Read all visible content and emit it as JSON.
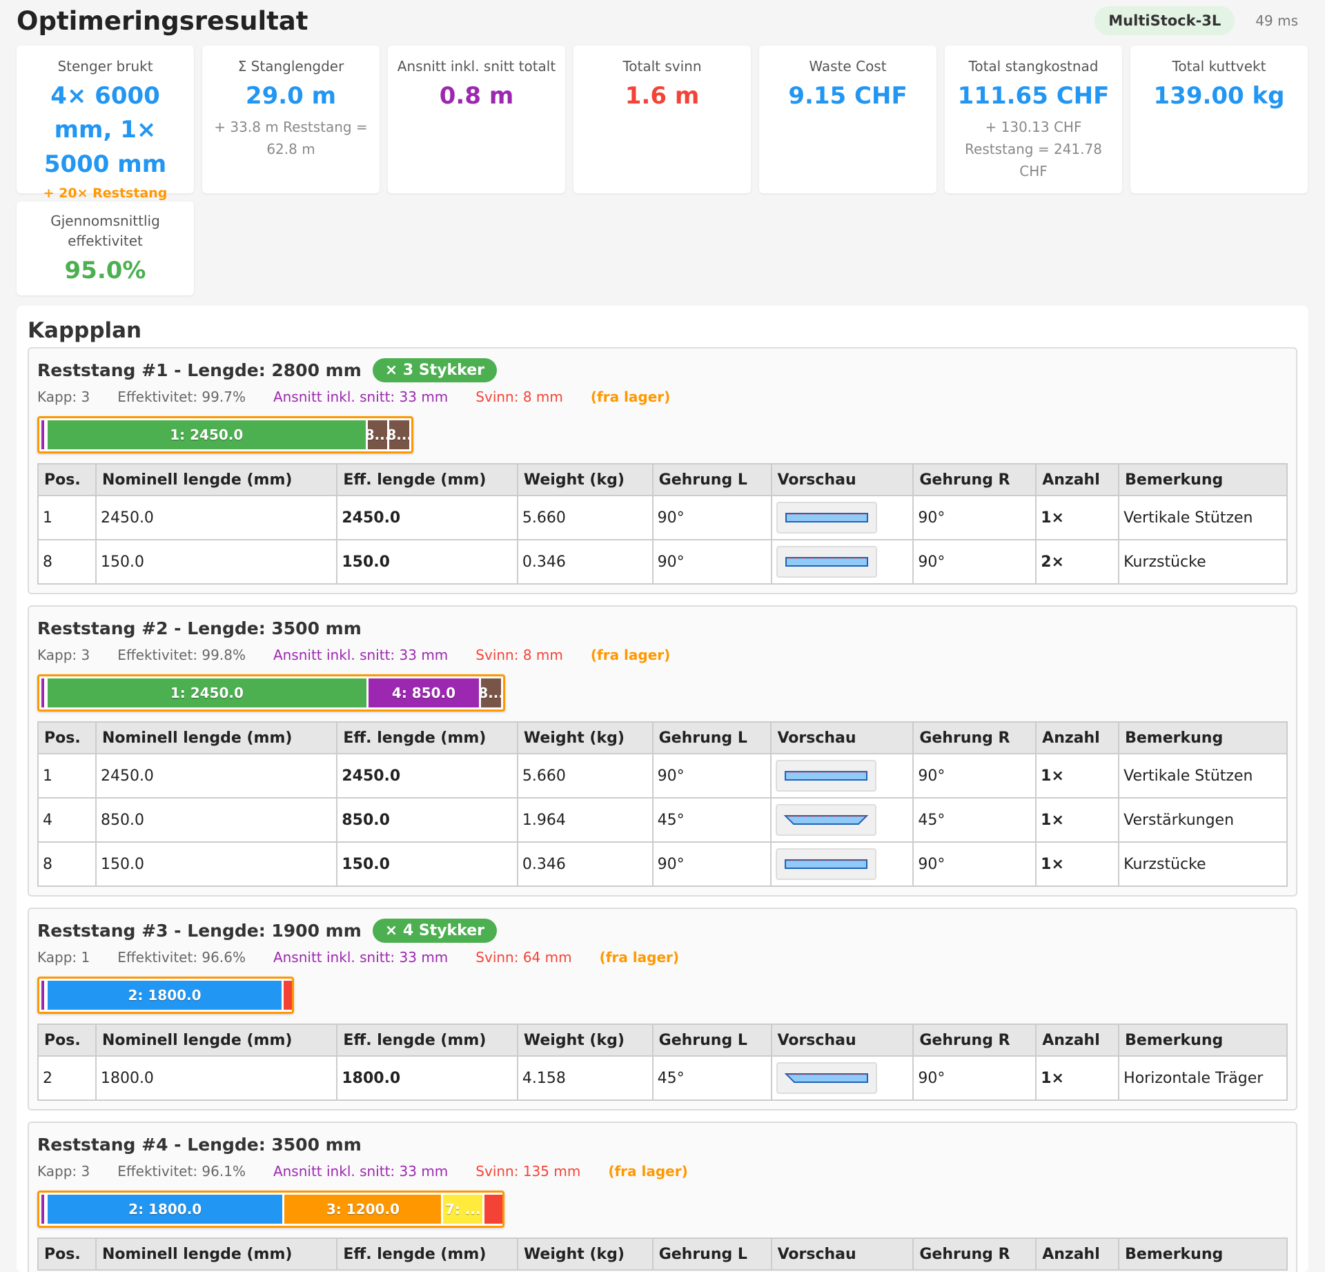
{
  "header": {
    "title": "Optimeringsresultat",
    "algorithm": "MultiStock-3L",
    "time": "49 ms"
  },
  "stats": [
    {
      "label": "Stenger brukt",
      "value": "4× 6000 mm, 1× 5000 mm",
      "accent_line": "+ 20× Reststang",
      "color": "#2196f3"
    },
    {
      "label": "Σ Stanglengder",
      "value": "29.0 m",
      "sub": "+ 33.8 m Reststang = 62.8 m",
      "color": "#2196f3"
    },
    {
      "label": "Ansnitt inkl. snitt totalt",
      "value": "0.8 m",
      "color": "#9c27b0"
    },
    {
      "label": "Totalt svinn",
      "value": "1.6 m",
      "color": "#f44336"
    },
    {
      "label": "Waste Cost",
      "value": "9.15 CHF",
      "color": "#2196f3"
    },
    {
      "label": "Total stangkostnad",
      "value": "111.65 CHF",
      "sub": "+ 130.13 CHF Reststang = 241.78 CHF",
      "color": "#2196f3"
    },
    {
      "label": "Total kuttvekt",
      "value": "139.00 kg",
      "color": "#2196f3"
    },
    {
      "label": "Gjennomsnittlig effektivitet",
      "value": "95.0%",
      "color": "#4caf50"
    }
  ],
  "section_title": "Kappplan",
  "table_headers": [
    "Pos.",
    "Nominell lengde (mm)",
    "Eff. lengde (mm)",
    "Weight (kg)",
    "Gehrung L",
    "Vorschau",
    "Gehrung R",
    "Anzahl",
    "Bemerkung"
  ],
  "stocks": [
    {
      "title": "Reststang #1 - Lengde: 2800 mm",
      "badge": "× 3 Stykker",
      "meta": {
        "cuts": "Kapp: 3",
        "eff": "Effektivitet: 99.7%",
        "kerf": "Ansnitt inkl. snitt: 33 mm",
        "waste": "Svinn: 8 mm",
        "source": "(fra lager)"
      },
      "segments": [
        {
          "label": "1: 2450.0",
          "length": 2450,
          "color": "green"
        },
        {
          "label": "8...",
          "length": 150,
          "color": "brown"
        },
        {
          "label": "8...",
          "length": 150,
          "color": "brown"
        }
      ],
      "rows": [
        {
          "pos": "1",
          "nominal": "2450.0",
          "eff": "2450.0",
          "weight": "5.660",
          "miter_l": "90°",
          "miter_r": "90°",
          "qty": "1×",
          "note": "Vertikale Stützen",
          "shape": "rect"
        },
        {
          "pos": "8",
          "nominal": "150.0",
          "eff": "150.0",
          "weight": "0.346",
          "miter_l": "90°",
          "miter_r": "90°",
          "qty": "2×",
          "note": "Kurzstücke",
          "shape": "rect"
        }
      ]
    },
    {
      "title": "Reststang #2 - Lengde: 3500 mm",
      "badge": "",
      "meta": {
        "cuts": "Kapp: 3",
        "eff": "Effektivitet: 99.8%",
        "kerf": "Ansnitt inkl. snitt: 33 mm",
        "waste": "Svinn: 8 mm",
        "source": "(fra lager)"
      },
      "segments": [
        {
          "label": "1: 2450.0",
          "length": 2450,
          "color": "green"
        },
        {
          "label": "4: 850.0",
          "length": 850,
          "color": "purple"
        },
        {
          "label": "8...",
          "length": 150,
          "color": "brown"
        }
      ],
      "rows": [
        {
          "pos": "1",
          "nominal": "2450.0",
          "eff": "2450.0",
          "weight": "5.660",
          "miter_l": "90°",
          "miter_r": "90°",
          "qty": "1×",
          "note": "Vertikale Stützen",
          "shape": "rect"
        },
        {
          "pos": "4",
          "nominal": "850.0",
          "eff": "850.0",
          "weight": "1.964",
          "miter_l": "45°",
          "miter_r": "45°",
          "qty": "1×",
          "note": "Verstärkungen",
          "shape": "trap"
        },
        {
          "pos": "8",
          "nominal": "150.0",
          "eff": "150.0",
          "weight": "0.346",
          "miter_l": "90°",
          "miter_r": "90°",
          "qty": "1×",
          "note": "Kurzstücke",
          "shape": "rect"
        }
      ]
    },
    {
      "title": "Reststang #3 - Lengde: 1900 mm",
      "badge": "× 4 Stykker",
      "meta": {
        "cuts": "Kapp: 1",
        "eff": "Effektivitet: 96.6%",
        "kerf": "Ansnitt inkl. snitt: 33 mm",
        "waste": "Svinn: 64 mm",
        "source": "(fra lager)"
      },
      "segments": [
        {
          "label": "2: 1800.0",
          "length": 1800,
          "color": "blue"
        },
        {
          "label": "",
          "length": 64,
          "color": "waste"
        }
      ],
      "rows": [
        {
          "pos": "2",
          "nominal": "1800.0",
          "eff": "1800.0",
          "weight": "4.158",
          "miter_l": "45°",
          "miter_r": "90°",
          "qty": "1×",
          "note": "Horizontale Träger",
          "shape": "left"
        }
      ]
    },
    {
      "title": "Reststang #4 - Lengde: 3500 mm",
      "badge": "",
      "meta": {
        "cuts": "Kapp: 3",
        "eff": "Effektivitet: 96.1%",
        "kerf": "Ansnitt inkl. snitt: 33 mm",
        "waste": "Svinn: 135 mm",
        "source": "(fra lager)"
      },
      "segments": [
        {
          "label": "2: 1800.0",
          "length": 1800,
          "color": "blue"
        },
        {
          "label": "3: 1200.0",
          "length": 1200,
          "color": "orange"
        },
        {
          "label": "7: ...",
          "length": 300,
          "color": "yellow"
        },
        {
          "label": "",
          "length": 135,
          "color": "waste"
        }
      ],
      "rows": []
    }
  ]
}
